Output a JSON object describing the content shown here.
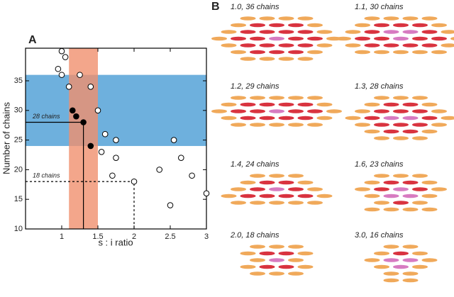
{
  "chart_data": {
    "type": "scatter",
    "panel_label": "A",
    "x_label": "s : i ratio",
    "y_label": "Number of chains",
    "xlim": [
      0.5,
      3
    ],
    "ylim": [
      10,
      40.5
    ],
    "xticks": [
      1,
      1.5,
      2,
      2.5,
      3
    ],
    "yticks": [
      10,
      15,
      20,
      25,
      30,
      35
    ],
    "x_band": [
      1.1,
      1.5
    ],
    "x_band_color": "#f0906e",
    "y_band": [
      24,
      36
    ],
    "y_band_color": "#6eb0dd",
    "series": [
      {
        "marker": "open",
        "color": "#000000",
        "x": [
          1.0,
          1.05,
          0.95,
          1.0,
          1.1,
          1.25,
          1.4,
          1.5,
          1.6,
          1.75,
          1.55,
          1.75,
          1.7,
          2.0,
          2.35,
          2.55,
          2.65,
          2.8,
          2.5,
          3.0
        ],
        "values": [
          40,
          39,
          37,
          36,
          34,
          36,
          34,
          30,
          26,
          25,
          23,
          22,
          19,
          18,
          20,
          25,
          22,
          19,
          14,
          16
        ]
      },
      {
        "marker": "filled",
        "color": "#000000",
        "x": [
          1.15,
          1.2,
          1.3,
          1.4
        ],
        "values": [
          30,
          29,
          28,
          24
        ]
      }
    ],
    "annotations": [
      {
        "text": "28 chains",
        "x": 1.3,
        "y": 28,
        "dash": false
      },
      {
        "text": "18 chains",
        "x": 2.0,
        "y": 18,
        "dash": true
      }
    ]
  },
  "panel_b": {
    "label": "B",
    "diagrams": [
      {
        "caption": "1.0, 36 chains"
      },
      {
        "caption": "1.1, 30 chains"
      },
      {
        "caption": "1.2, 29 chains"
      },
      {
        "caption": "1.3, 28 chains"
      },
      {
        "caption": "1.4, 24 chains"
      },
      {
        "caption": "1.6, 23 chains"
      },
      {
        "caption": "2.0, 18 chains"
      },
      {
        "caption": "3.0, 16 chains"
      }
    ]
  }
}
